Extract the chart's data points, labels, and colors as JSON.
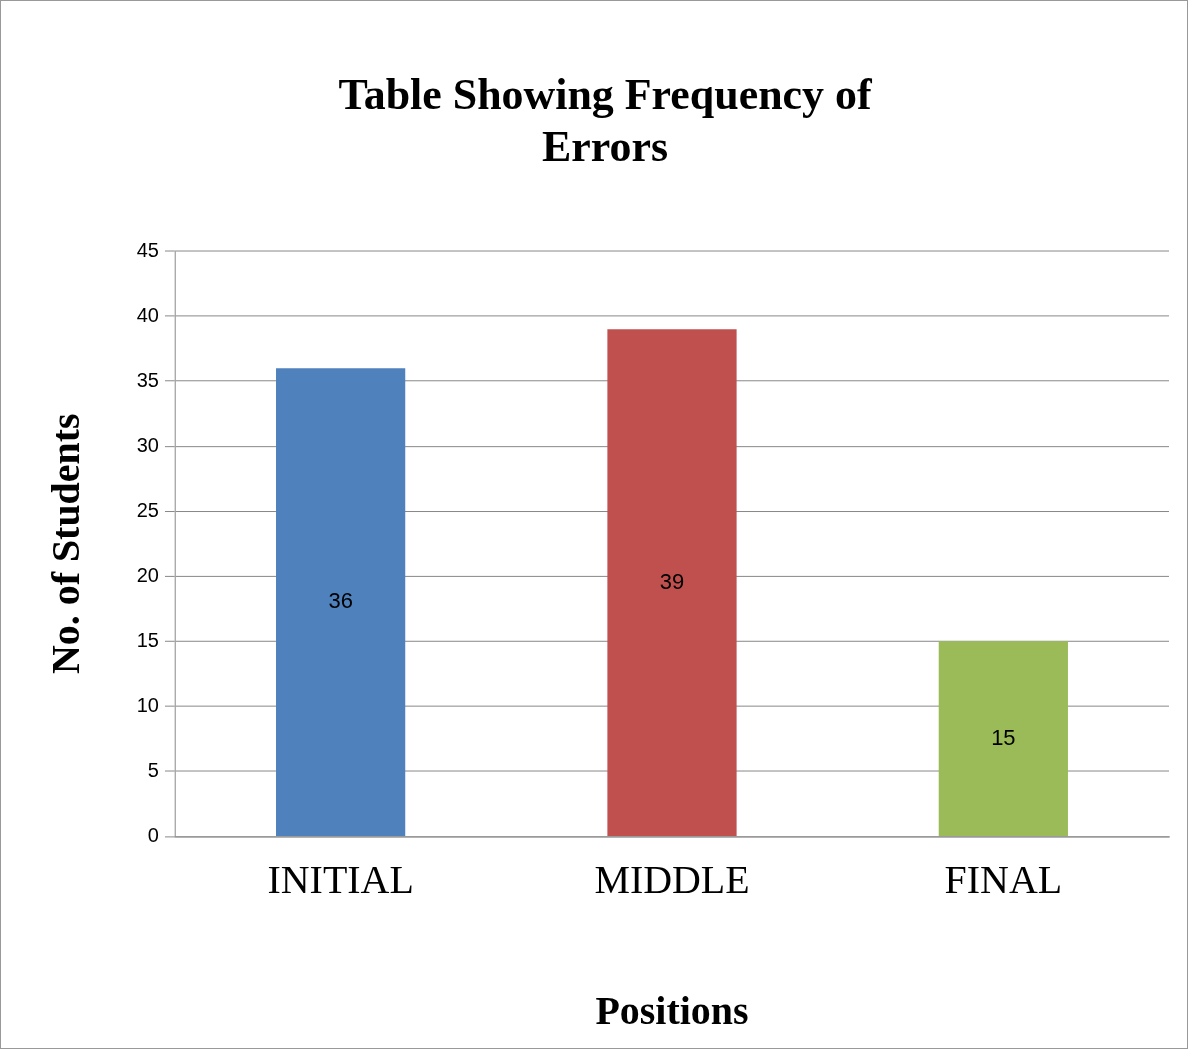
{
  "chart_data": {
    "type": "bar",
    "title": "Table Showing Frequency of Errors",
    "xlabel": "Positions",
    "ylabel": "No. of Students",
    "categories": [
      "INITIAL",
      "MIDDLE",
      "FINAL"
    ],
    "values": [
      36,
      39,
      15
    ],
    "colors": [
      "#4f81bd",
      "#c0504d",
      "#9bbb59"
    ],
    "ylim": [
      0,
      45
    ],
    "yticks": [
      0,
      5,
      10,
      15,
      20,
      25,
      30,
      35,
      40,
      45
    ],
    "grid": "y",
    "data_labels": true,
    "legend": false
  }
}
